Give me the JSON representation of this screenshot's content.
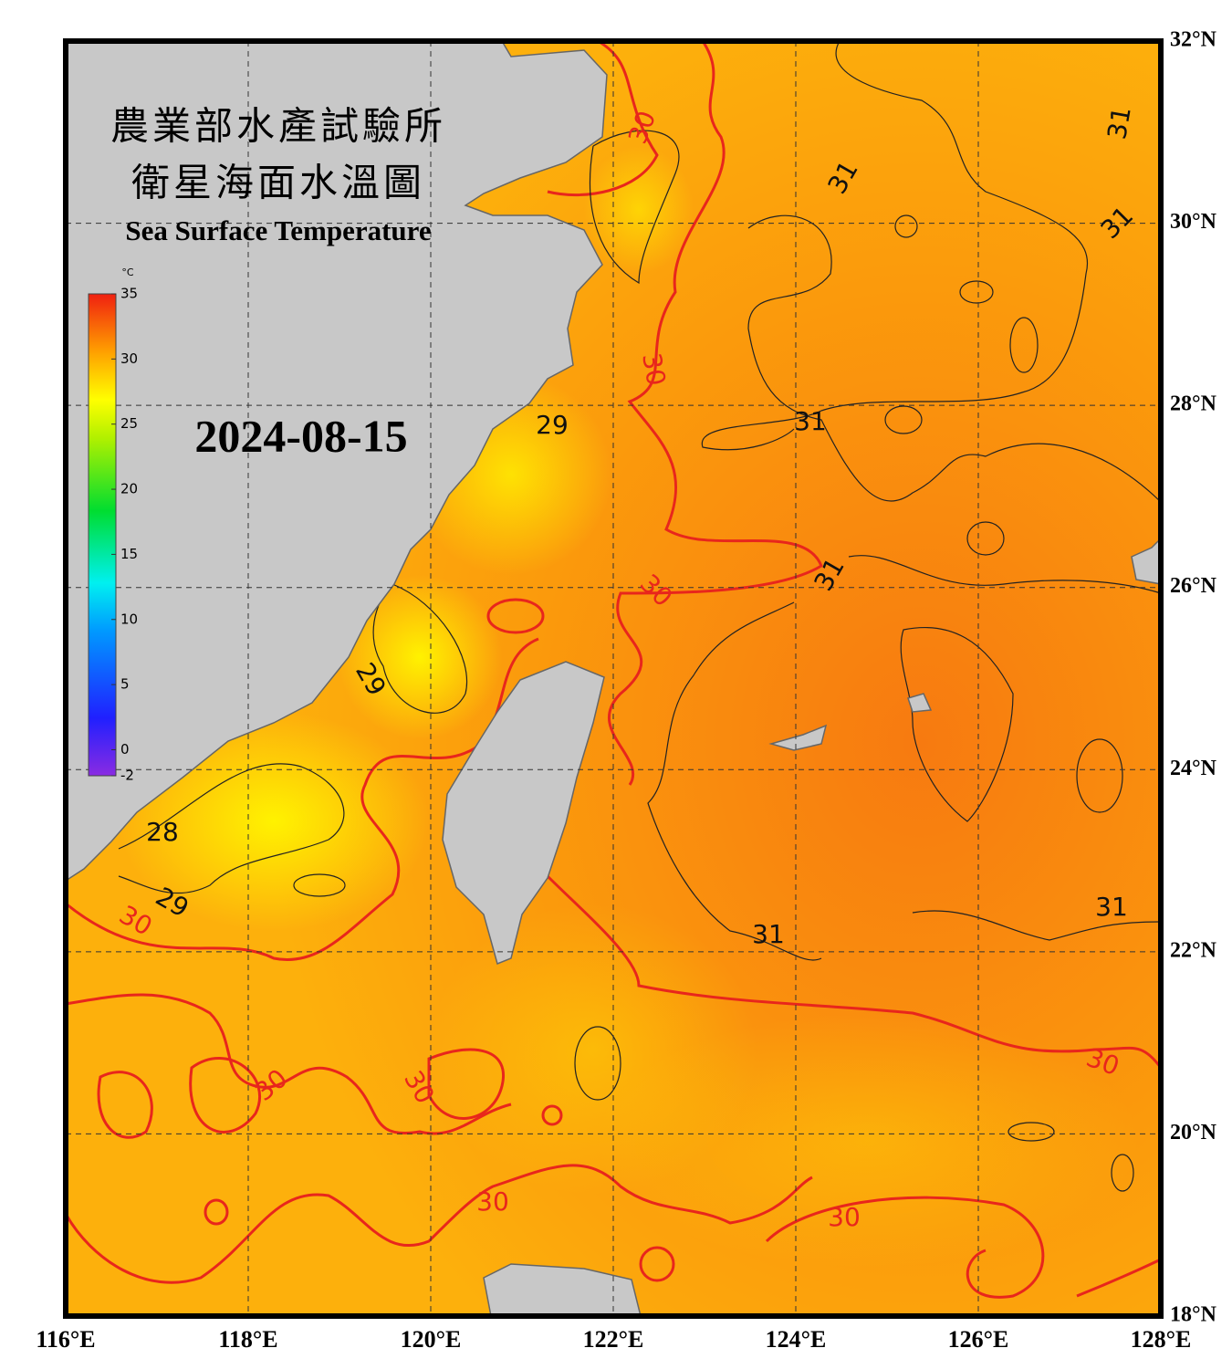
{
  "map": {
    "title_zh_1": "農業部水產試驗所",
    "title_zh_2": "衛星海面水溫圖",
    "title_en": "Sea Surface Temperature",
    "date": "2024-08-15",
    "colorbar": {
      "unit": "°C",
      "lim": [
        -2,
        35
      ],
      "ticks": [
        35,
        30,
        25,
        20,
        15,
        10,
        5,
        0,
        -2
      ]
    },
    "xlim": [
      116,
      128
    ],
    "ylim": [
      18,
      32
    ],
    "xticks": [
      {
        "value": 116,
        "label": "116°E"
      },
      {
        "value": 118,
        "label": "118°E"
      },
      {
        "value": 120,
        "label": "120°E"
      },
      {
        "value": 122,
        "label": "122°E"
      },
      {
        "value": 124,
        "label": "124°E"
      },
      {
        "value": 126,
        "label": "126°E"
      },
      {
        "value": 128,
        "label": "128°E"
      }
    ],
    "yticks": [
      {
        "value": 32,
        "label": "32°N"
      },
      {
        "value": 30,
        "label": "30°N"
      },
      {
        "value": 28,
        "label": "28°N"
      },
      {
        "value": 26,
        "label": "26°N"
      },
      {
        "value": 24,
        "label": "24°N"
      },
      {
        "value": 22,
        "label": "22°N"
      },
      {
        "value": 20,
        "label": "20°N"
      },
      {
        "value": 18,
        "label": "18°N"
      }
    ],
    "grid": true,
    "contour_labels": [
      {
        "value": 30,
        "color": "#e8261c"
      },
      {
        "value": 31,
        "color": "#111111"
      },
      {
        "value": 31,
        "color": "#111111"
      },
      {
        "value": 31,
        "color": "#111111"
      },
      {
        "value": 30,
        "color": "#e8261c"
      },
      {
        "value": 29,
        "color": "#111111"
      },
      {
        "value": 31,
        "color": "#111111"
      },
      {
        "value": 31,
        "color": "#111111"
      },
      {
        "value": 30,
        "color": "#e8261c"
      },
      {
        "value": 29,
        "color": "#111111"
      },
      {
        "value": 28,
        "color": "#111111"
      },
      {
        "value": 29,
        "color": "#111111"
      },
      {
        "value": 30,
        "color": "#e8261c"
      },
      {
        "value": 31,
        "color": "#111111"
      },
      {
        "value": 31,
        "color": "#111111"
      },
      {
        "value": 30,
        "color": "#e8261c"
      },
      {
        "value": 30,
        "color": "#e8261c"
      },
      {
        "value": 30,
        "color": "#e8261c"
      },
      {
        "value": 30,
        "color": "#e8261c"
      },
      {
        "value": 30,
        "color": "#e8261c"
      }
    ]
  }
}
